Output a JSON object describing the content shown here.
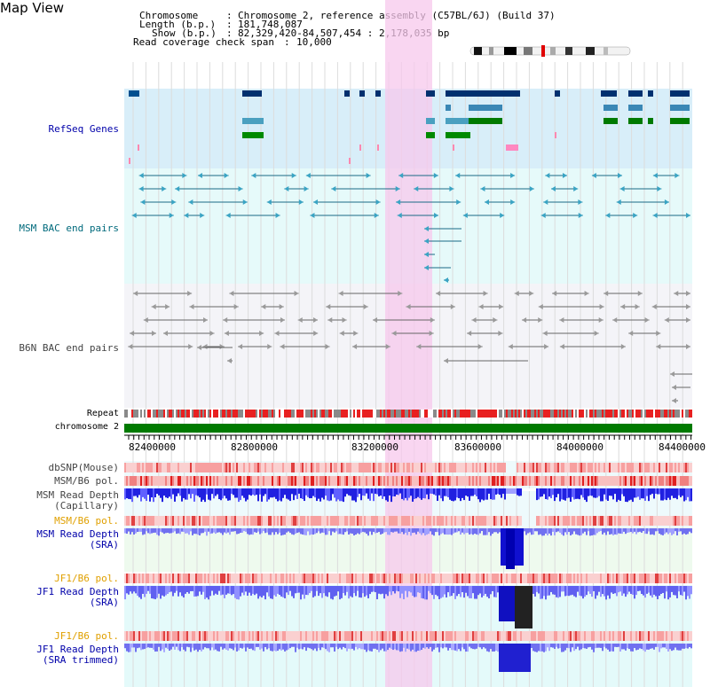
{
  "title": "Map View",
  "header": {
    "chromosome_key": "Chromosome",
    "chromosome_val": "Chromosome 2, reference assembly (C57BL/6J) (Build 37)",
    "length_key": "Length (b.p.)",
    "length_val": "181,748,087",
    "show_key": "Show (b.p.)",
    "show_val": "82,329,420-84,507,454 : 2,178,035 bp",
    "read_key": "Read coverage check span",
    "read_val": "10,000"
  },
  "tracks": {
    "refseq": "RefSeq Genes",
    "msm_bac": "MSM BAC end pairs",
    "b6n_bac": "B6N BAC end pairs",
    "repeat": "Repeat",
    "chromosome": "chromosome 2",
    "dbsnp": "dbSNP(Mouse)",
    "msm_b6_pol": "MSM/B6 pol.",
    "msm_depth_cap_1": "MSM Read Depth",
    "msm_depth_cap_2": "(Capillary)",
    "msm_b6_pol2": "MSM/B6 pol.",
    "msm_depth_sra_1": "MSM Read Depth",
    "msm_depth_sra_2": "(SRA)",
    "jf1_b6_pol": "JF1/B6 pol.",
    "jf1_depth_sra_1": "JF1 Read Depth",
    "jf1_depth_sra_2": "(SRA)",
    "jf1_b6_pol2": "JF1/B6 pol.",
    "jf1_depth_trim_1": "JF1 Read Depth",
    "jf1_depth_trim_2": "(SRA trimmed)"
  },
  "axis": {
    "ticks": [
      "82400000",
      "82800000",
      "83200000",
      "83600000",
      "84000000",
      "84400000"
    ]
  },
  "colors": {
    "refseq_bg": "#d8eef9",
    "msm_bg": "#e6fafa",
    "b6n_bg": "#f4f4f8",
    "highlight": "#f7d2ef",
    "chromosome_bar": "#007a00"
  }
}
